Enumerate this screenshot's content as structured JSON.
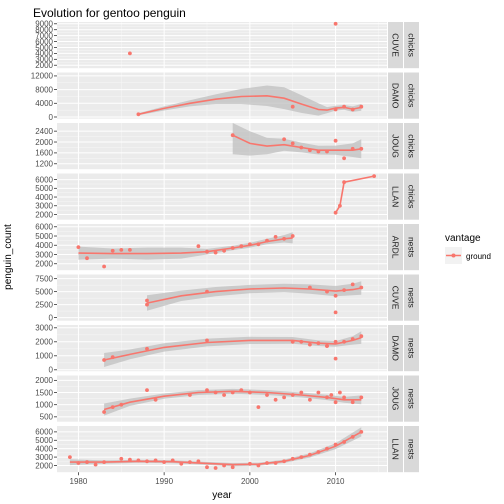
{
  "chart_data": {
    "type": "faceted-scatter-smooth",
    "title": "Evolution for gentoo penguin",
    "xlabel": "year",
    "ylabel": "penguin_count",
    "xlim": [
      1977.5,
      2016
    ],
    "x_ticks": [
      1980,
      1990,
      2000,
      2010
    ],
    "colors": {
      "ground": "#F8766D",
      "ribbon": "#bfbfbf",
      "panel": "#ebebeb",
      "strip": "#d9d9d9"
    },
    "legend": {
      "title": "vantage",
      "entries": [
        "ground"
      ],
      "position": "right"
    },
    "panels": [
      {
        "site": "CUVE",
        "count_type": "chicks",
        "ylim": [
          1500,
          9300
        ],
        "y_ticks": [
          2000,
          3000,
          4000,
          5000,
          6000,
          7000,
          8000,
          9000
        ],
        "points": [
          [
            1986,
            4000
          ],
          [
            2010,
            9000
          ]
        ],
        "smooth": [],
        "ribbon_halfwidth": []
      },
      {
        "site": "DAMO",
        "count_type": "chicks",
        "ylim": [
          -500,
          13000
        ],
        "y_ticks": [
          0,
          4000,
          8000,
          12000
        ],
        "points": [
          [
            1987,
            800
          ],
          [
            2005,
            3000
          ],
          [
            2010,
            2200
          ],
          [
            2011,
            3000
          ],
          [
            2012,
            2200
          ],
          [
            2013,
            3000
          ]
        ],
        "smooth": [
          [
            1987,
            800
          ],
          [
            1990,
            2500
          ],
          [
            1993,
            4000
          ],
          [
            1996,
            5200
          ],
          [
            1999,
            6000
          ],
          [
            2002,
            6200
          ],
          [
            2004,
            5500
          ],
          [
            2006,
            3800
          ],
          [
            2008,
            2200
          ],
          [
            2009,
            2000
          ],
          [
            2010,
            2600
          ],
          [
            2011,
            2800
          ],
          [
            2012,
            2300
          ],
          [
            2013,
            2800
          ]
        ],
        "ribbon_halfwidth": [
          300,
          600,
          900,
          1400,
          2200,
          3000,
          3200,
          2600,
          1800,
          900,
          700,
          700,
          800,
          1000
        ]
      },
      {
        "site": "JOUG",
        "count_type": "chicks",
        "ylim": [
          1000,
          2700
        ],
        "y_ticks": [
          1200,
          1600,
          2000,
          2400
        ],
        "points": [
          [
            1998,
            2250
          ],
          [
            2004,
            2100
          ],
          [
            2005,
            1950
          ],
          [
            2006,
            1800
          ],
          [
            2007,
            1700
          ],
          [
            2008,
            1650
          ],
          [
            2009,
            1650
          ],
          [
            2010,
            2050
          ],
          [
            2011,
            1400
          ],
          [
            2012,
            1750
          ],
          [
            2013,
            1750
          ]
        ],
        "smooth": [
          [
            1998,
            2250
          ],
          [
            2000,
            1950
          ],
          [
            2002,
            1850
          ],
          [
            2004,
            1900
          ],
          [
            2006,
            1800
          ],
          [
            2008,
            1700
          ],
          [
            2010,
            1700
          ],
          [
            2012,
            1700
          ],
          [
            2013,
            1750
          ]
        ],
        "ribbon_halfwidth": [
          700,
          450,
          300,
          220,
          180,
          160,
          170,
          250,
          350
        ]
      },
      {
        "site": "LLAN",
        "count_type": "chicks",
        "ylim": [
          1400,
          6700
        ],
        "y_ticks": [
          2000,
          3000,
          4000,
          5000,
          6000
        ],
        "points": [
          [
            2010,
            2200
          ],
          [
            2010.5,
            3000
          ],
          [
            2011,
            5700
          ],
          [
            2014.5,
            6400
          ]
        ],
        "smooth": [
          [
            2010,
            2200
          ],
          [
            2010.5,
            3000
          ],
          [
            2011,
            5700
          ],
          [
            2014.5,
            6400
          ]
        ],
        "ribbon_halfwidth": [
          0,
          0,
          0,
          0
        ]
      },
      {
        "site": "ARDL",
        "count_type": "nests",
        "ylim": [
          1300,
          6300
        ],
        "y_ticks": [
          2000,
          3000,
          4000,
          5000,
          6000
        ],
        "points": [
          [
            1980,
            3800
          ],
          [
            1981,
            2600
          ],
          [
            1983,
            1700
          ],
          [
            1984,
            3400
          ],
          [
            1985,
            3500
          ],
          [
            1986,
            3500
          ],
          [
            1994,
            3900
          ],
          [
            1995,
            3300
          ],
          [
            1996,
            3200
          ],
          [
            1997,
            3400
          ],
          [
            1998,
            3700
          ],
          [
            1999,
            3900
          ],
          [
            2000,
            4100
          ],
          [
            2001,
            4100
          ],
          [
            2002,
            4500
          ],
          [
            2003,
            4900
          ],
          [
            2004,
            4700
          ],
          [
            2005,
            5000
          ]
        ],
        "smooth": [
          [
            1980,
            3150
          ],
          [
            1984,
            3100
          ],
          [
            1988,
            3100
          ],
          [
            1992,
            3150
          ],
          [
            1995,
            3300
          ],
          [
            1998,
            3700
          ],
          [
            2000,
            4000
          ],
          [
            2002,
            4400
          ],
          [
            2004,
            4700
          ],
          [
            2005,
            4800
          ]
        ],
        "ribbon_halfwidth": [
          700,
          550,
          650,
          600,
          300,
          250,
          250,
          300,
          400,
          600
        ]
      },
      {
        "site": "CUVE",
        "count_type": "nests",
        "ylim": [
          -600,
          8300
        ],
        "y_ticks": [
          0,
          2500,
          5000,
          7500
        ],
        "points": [
          [
            1988,
            2500
          ],
          [
            1988,
            3300
          ],
          [
            1995,
            5000
          ],
          [
            2007,
            5800
          ],
          [
            2009,
            5000
          ],
          [
            2010,
            1000
          ],
          [
            2010,
            4200
          ],
          [
            2011,
            5300
          ],
          [
            2012,
            6400
          ],
          [
            2013,
            5800
          ]
        ],
        "smooth": [
          [
            1988,
            2800
          ],
          [
            1992,
            4200
          ],
          [
            1996,
            5000
          ],
          [
            2000,
            5500
          ],
          [
            2004,
            5700
          ],
          [
            2007,
            5500
          ],
          [
            2010,
            5100
          ],
          [
            2012,
            5400
          ],
          [
            2013,
            5700
          ]
        ],
        "ribbon_halfwidth": [
          1500,
          1000,
          900,
          800,
          800,
          900,
          1000,
          1100,
          1300
        ]
      },
      {
        "site": "DAMO",
        "count_type": "nests",
        "ylim": [
          -100,
          3200
        ],
        "y_ticks": [
          0,
          1000,
          2000,
          3000
        ],
        "points": [
          [
            1983,
            700
          ],
          [
            1984,
            900
          ],
          [
            1988,
            1500
          ],
          [
            1995,
            2100
          ],
          [
            2005,
            2000
          ],
          [
            2006,
            2000
          ],
          [
            2007,
            1800
          ],
          [
            2008,
            1900
          ],
          [
            2009,
            1700
          ],
          [
            2009,
            1700
          ],
          [
            2010,
            2000
          ],
          [
            2010,
            800
          ],
          [
            2011,
            2000
          ],
          [
            2012,
            2200
          ],
          [
            2013,
            2400
          ]
        ],
        "smooth": [
          [
            1983,
            700
          ],
          [
            1986,
            1100
          ],
          [
            1990,
            1600
          ],
          [
            1995,
            1950
          ],
          [
            2000,
            2100
          ],
          [
            2005,
            2100
          ],
          [
            2008,
            1900
          ],
          [
            2010,
            1850
          ],
          [
            2012,
            2100
          ],
          [
            2013,
            2300
          ]
        ],
        "ribbon_halfwidth": [
          500,
          350,
          300,
          280,
          260,
          240,
          200,
          200,
          300,
          450
        ]
      },
      {
        "site": "JOUG",
        "count_type": "nests",
        "ylim": [
          300,
          2200
        ],
        "y_ticks": [
          500,
          1000,
          1500,
          2000
        ],
        "points": [
          [
            1983,
            700
          ],
          [
            1984,
            900
          ],
          [
            1985,
            1000
          ],
          [
            1988,
            1600
          ],
          [
            1989,
            1200
          ],
          [
            1993,
            1400
          ],
          [
            1995,
            1600
          ],
          [
            1996,
            1500
          ],
          [
            1997,
            1400
          ],
          [
            1998,
            1500
          ],
          [
            1999,
            1600
          ],
          [
            2000,
            1500
          ],
          [
            2001,
            900
          ],
          [
            2002,
            1400
          ],
          [
            2003,
            1200
          ],
          [
            2004,
            1300
          ],
          [
            2005,
            1400
          ],
          [
            2006,
            1500
          ],
          [
            2007,
            1200
          ],
          [
            2008,
            1500
          ],
          [
            2009,
            1300
          ],
          [
            2009.5,
            1400
          ],
          [
            2010,
            1100
          ],
          [
            2010.5,
            1500
          ],
          [
            2011,
            1300
          ],
          [
            2012,
            1100
          ],
          [
            2013,
            1300
          ]
        ],
        "smooth": [
          [
            1983,
            800
          ],
          [
            1986,
            1100
          ],
          [
            1990,
            1350
          ],
          [
            1994,
            1500
          ],
          [
            1998,
            1550
          ],
          [
            2002,
            1500
          ],
          [
            2006,
            1400
          ],
          [
            2009,
            1300
          ],
          [
            2011,
            1200
          ],
          [
            2013,
            1200
          ]
        ],
        "ribbon_halfwidth": [
          250,
          150,
          110,
          100,
          100,
          100,
          100,
          110,
          120,
          180
        ]
      },
      {
        "site": "LLAN",
        "count_type": "nests",
        "ylim": [
          1200,
          6700
        ],
        "y_ticks": [
          2000,
          3000,
          4000,
          5000,
          6000
        ],
        "points": [
          [
            1979,
            3000
          ],
          [
            1980,
            2300
          ],
          [
            1981,
            2400
          ],
          [
            1982,
            2100
          ],
          [
            1983,
            2400
          ],
          [
            1985,
            2800
          ],
          [
            1986,
            2700
          ],
          [
            1987,
            2600
          ],
          [
            1988,
            2500
          ],
          [
            1989,
            2600
          ],
          [
            1990,
            2400
          ],
          [
            1991,
            2600
          ],
          [
            1992,
            2200
          ],
          [
            1993,
            2400
          ],
          [
            1994,
            2500
          ],
          [
            1995,
            1800
          ],
          [
            1996,
            1700
          ],
          [
            1997,
            2000
          ],
          [
            1998,
            1800
          ],
          [
            2000,
            2200
          ],
          [
            2001,
            2000
          ],
          [
            2002,
            2300
          ],
          [
            2003,
            2300
          ],
          [
            2004,
            2500
          ],
          [
            2005,
            2800
          ],
          [
            2006,
            3000
          ],
          [
            2007,
            3300
          ],
          [
            2008,
            3600
          ],
          [
            2009,
            4000
          ],
          [
            2010,
            4500
          ],
          [
            2011,
            4800
          ],
          [
            2012,
            5400
          ],
          [
            2013,
            6000
          ]
        ],
        "smooth": [
          [
            1979,
            2400
          ],
          [
            1983,
            2400
          ],
          [
            1987,
            2500
          ],
          [
            1991,
            2450
          ],
          [
            1995,
            2250
          ],
          [
            1998,
            2100
          ],
          [
            2001,
            2150
          ],
          [
            2004,
            2500
          ],
          [
            2007,
            3200
          ],
          [
            2010,
            4300
          ],
          [
            2013,
            6000
          ]
        ],
        "ribbon_halfwidth": [
          350,
          200,
          180,
          180,
          180,
          180,
          180,
          200,
          250,
          350,
          550
        ]
      }
    ]
  }
}
